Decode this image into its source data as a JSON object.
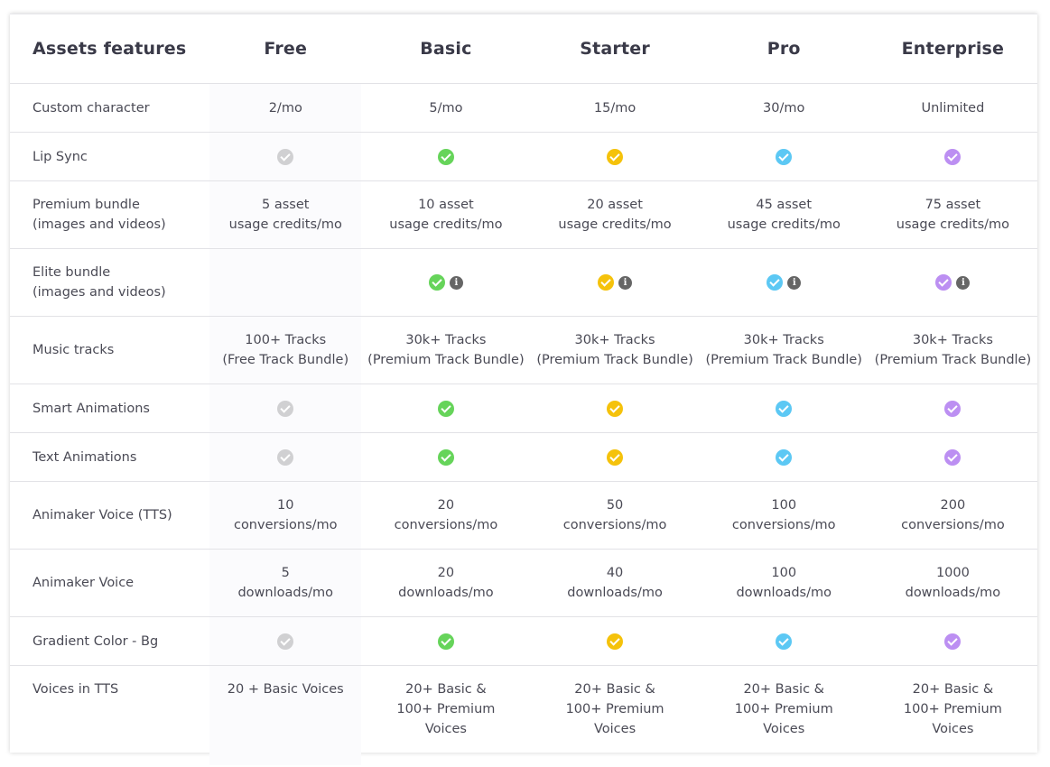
{
  "header": {
    "feature_col": "Assets features",
    "plans": [
      "Free",
      "Basic",
      "Starter",
      "Pro",
      "Enterprise"
    ]
  },
  "colors": {
    "free": "#d0d0d2",
    "basic": "#66d45a",
    "starter": "#f5c20b",
    "pro": "#5cc8f4",
    "enterprise": "#bc8ff2"
  },
  "info_symbol": "i",
  "rows": [
    {
      "feature": "Custom character",
      "cells": [
        "2/mo",
        "5/mo",
        "15/mo",
        "30/mo",
        "Unlimited"
      ]
    },
    {
      "feature": "Lip Sync",
      "cells": [
        "check",
        "check",
        "check",
        "check",
        "check"
      ]
    },
    {
      "feature": "Premium bundle\n(images and videos)",
      "cells": [
        "5 asset\nusage credits/mo",
        "10 asset\nusage credits/mo",
        "20 asset\nusage credits/mo",
        "45 asset\nusage credits/mo",
        "75 asset\nusage credits/mo"
      ]
    },
    {
      "feature": "Elite bundle\n(images and videos)",
      "cells": [
        "",
        "check-info",
        "check-info",
        "check-info",
        "check-info"
      ]
    },
    {
      "feature": "Music tracks",
      "cells": [
        "100+ Tracks\n(Free Track Bundle)",
        "30k+ Tracks\n(Premium Track Bundle)",
        "30k+ Tracks\n(Premium Track Bundle)",
        "30k+ Tracks\n(Premium Track Bundle)",
        "30k+ Tracks\n(Premium Track Bundle)"
      ]
    },
    {
      "feature": "Smart Animations",
      "cells": [
        "check",
        "check",
        "check",
        "check",
        "check"
      ]
    },
    {
      "feature": "Text Animations",
      "cells": [
        "check",
        "check",
        "check",
        "check",
        "check"
      ]
    },
    {
      "feature": "Animaker Voice (TTS)",
      "cells": [
        "10\nconversions/mo",
        "20\nconversions/mo",
        "50\nconversions/mo",
        "100\nconversions/mo",
        "200\nconversions/mo"
      ]
    },
    {
      "feature": "Animaker Voice",
      "cells": [
        "5\ndownloads/mo",
        "20\ndownloads/mo",
        "40\ndownloads/mo",
        "100\ndownloads/mo",
        "1000\ndownloads/mo"
      ]
    },
    {
      "feature": "Gradient Color - Bg",
      "cells": [
        "check",
        "check",
        "check",
        "check",
        "check"
      ]
    },
    {
      "feature": "Voices in TTS",
      "cells": [
        "20 + Basic Voices",
        "20+ Basic &\n100+ Premium\nVoices",
        "20+ Basic &\n100+ Premium\nVoices",
        "20+ Basic &\n100+ Premium\nVoices",
        "20+ Basic &\n100+ Premium\nVoices"
      ]
    }
  ]
}
